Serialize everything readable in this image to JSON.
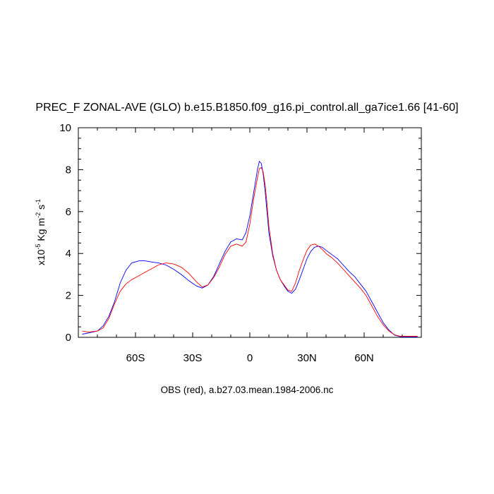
{
  "chart_data": {
    "type": "line",
    "title": "PREC_F ZONAL-AVE (GLO) b.e15.B1850.f09_g16.pi_control.all_ga7ice1.66 [41-60]",
    "xlabel": "OBS (red), a.b27.03.mean.1984-2006.nc",
    "ylabel": {
      "prefix": "x10",
      "exp1": "-5",
      "unit": " Kg m",
      "exp2": "-2",
      "unit2": " s",
      "exp3": "-1"
    },
    "xlim": [
      -90,
      90
    ],
    "ylim": [
      0,
      10
    ],
    "x_ticks": [
      {
        "value": -60,
        "label": "60S"
      },
      {
        "value": -30,
        "label": "30S"
      },
      {
        "value": 0,
        "label": "0"
      },
      {
        "value": 30,
        "label": "30N"
      },
      {
        "value": 60,
        "label": "60N"
      }
    ],
    "y_ticks": [
      {
        "value": 0,
        "label": "0"
      },
      {
        "value": 2,
        "label": "2"
      },
      {
        "value": 4,
        "label": "4"
      },
      {
        "value": 6,
        "label": "6"
      },
      {
        "value": 8,
        "label": "8"
      },
      {
        "value": 10,
        "label": "10"
      }
    ],
    "grid": false,
    "series": [
      {
        "color": "#0000ff",
        "x": [
          -88,
          -85,
          -80,
          -77,
          -74,
          -71,
          -68,
          -65,
          -62,
          -58,
          -55,
          -52,
          -48,
          -44,
          -40,
          -36,
          -32,
          -28,
          -25,
          -22,
          -19,
          -16,
          -13,
          -10,
          -7,
          -4,
          -2,
          0,
          2,
          4,
          5,
          6,
          7,
          8,
          9,
          10,
          12,
          14,
          16,
          18,
          20,
          22,
          24,
          26,
          28,
          30,
          32,
          34,
          36,
          38,
          40,
          43,
          46,
          49,
          52,
          55,
          58,
          61,
          64,
          67,
          70,
          73,
          76,
          79,
          82,
          85,
          88
        ],
        "y": [
          0.15,
          0.2,
          0.3,
          0.55,
          1.0,
          1.7,
          2.6,
          3.2,
          3.55,
          3.65,
          3.65,
          3.6,
          3.55,
          3.45,
          3.25,
          3.0,
          2.7,
          2.45,
          2.35,
          2.5,
          2.9,
          3.5,
          4.1,
          4.55,
          4.7,
          4.65,
          5.0,
          5.8,
          6.9,
          8.0,
          8.4,
          8.3,
          7.8,
          7.0,
          6.0,
          5.0,
          3.9,
          3.2,
          2.75,
          2.45,
          2.2,
          2.1,
          2.3,
          2.75,
          3.25,
          3.75,
          4.1,
          4.3,
          4.35,
          4.3,
          4.15,
          3.95,
          3.75,
          3.45,
          3.15,
          2.9,
          2.55,
          2.2,
          1.7,
          1.2,
          0.7,
          0.35,
          0.1,
          0.03,
          0.02,
          0.02,
          0.02
        ]
      },
      {
        "color": "#ff0000",
        "x": [
          -88,
          -85,
          -80,
          -77,
          -74,
          -71,
          -68,
          -65,
          -62,
          -58,
          -55,
          -52,
          -48,
          -44,
          -40,
          -36,
          -32,
          -28,
          -25,
          -22,
          -19,
          -16,
          -13,
          -10,
          -7,
          -4,
          -2,
          0,
          2,
          4,
          5,
          6,
          7,
          8,
          9,
          10,
          12,
          14,
          16,
          18,
          20,
          22,
          24,
          26,
          28,
          30,
          32,
          34,
          36,
          38,
          40,
          43,
          46,
          49,
          52,
          55,
          58,
          61,
          64,
          67,
          70,
          73,
          76,
          79,
          82,
          85,
          88
        ],
        "y": [
          0.3,
          0.25,
          0.3,
          0.45,
          0.9,
          1.6,
          2.2,
          2.55,
          2.75,
          2.95,
          3.1,
          3.25,
          3.45,
          3.55,
          3.5,
          3.35,
          3.05,
          2.65,
          2.4,
          2.5,
          2.85,
          3.35,
          3.95,
          4.35,
          4.45,
          4.35,
          4.55,
          5.4,
          6.6,
          7.6,
          8.05,
          8.1,
          7.9,
          7.3,
          6.4,
          5.3,
          4.0,
          3.2,
          2.75,
          2.5,
          2.25,
          2.2,
          2.6,
          3.2,
          3.7,
          4.15,
          4.4,
          4.45,
          4.35,
          4.2,
          4.0,
          3.8,
          3.55,
          3.25,
          2.95,
          2.65,
          2.35,
          2.0,
          1.5,
          1.0,
          0.6,
          0.3,
          0.12,
          0.05,
          0.05,
          0.05,
          0.05
        ]
      }
    ]
  }
}
